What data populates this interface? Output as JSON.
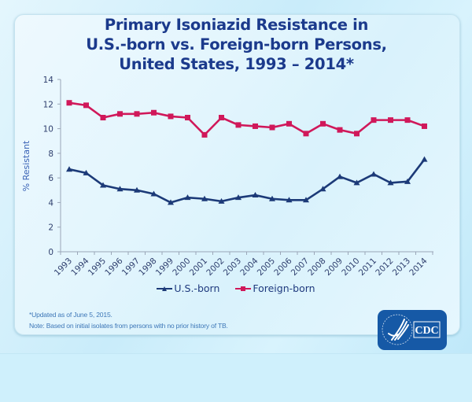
{
  "colors": {
    "title": "#1b3a8c",
    "us_born": "#1c3a78",
    "foreign_born": "#d0185a",
    "axis": "#9aa6b8",
    "ylabel": "#3a63b6",
    "notes": "#3f78b8",
    "cdc_blue": "#1659a6"
  },
  "title_lines": [
    "Primary Isoniazid Resistance in",
    "U.S.-born vs. Foreign-born Persons,",
    "United States, 1993 – 2014*"
  ],
  "notes": [
    "*Updated as of June 5, 2015.",
    "Note: Based on initial isolates from persons with no prior history of TB."
  ],
  "logo": {
    "text": "CDC",
    "icon": "hhs-eagle-icon"
  },
  "chart_data": {
    "type": "line",
    "title": "Primary Isoniazid Resistance in U.S.-born vs. Foreign-born Persons, United States, 1993 – 2014*",
    "xlabel": "",
    "ylabel": "% Resistant",
    "ylim": [
      0,
      14
    ],
    "yticks": [
      0,
      2,
      4,
      6,
      8,
      10,
      12,
      14
    ],
    "grid": false,
    "legend_position": "bottom-center",
    "x": [
      "1993",
      "1994",
      "1995",
      "1996",
      "1997",
      "1998",
      "1999",
      "2000",
      "2001",
      "2002",
      "2003",
      "2004",
      "2005",
      "2006",
      "2007",
      "2008",
      "2009",
      "2010",
      "2011",
      "2012",
      "2013",
      "2014"
    ],
    "series": [
      {
        "name": "U.S.-born",
        "marker": "triangle",
        "values": [
          6.7,
          6.4,
          5.4,
          5.1,
          5.0,
          4.7,
          4.0,
          4.4,
          4.3,
          4.1,
          4.4,
          4.6,
          4.3,
          4.2,
          4.2,
          5.1,
          6.1,
          5.6,
          6.3,
          5.6,
          5.7,
          7.5
        ]
      },
      {
        "name": "Foreign-born",
        "marker": "square",
        "values": [
          12.1,
          11.9,
          10.9,
          11.2,
          11.2,
          11.3,
          11.0,
          10.9,
          9.5,
          10.9,
          10.3,
          10.2,
          10.1,
          10.4,
          9.6,
          10.4,
          9.9,
          9.6,
          10.7,
          10.7,
          10.7,
          10.2
        ]
      }
    ]
  }
}
